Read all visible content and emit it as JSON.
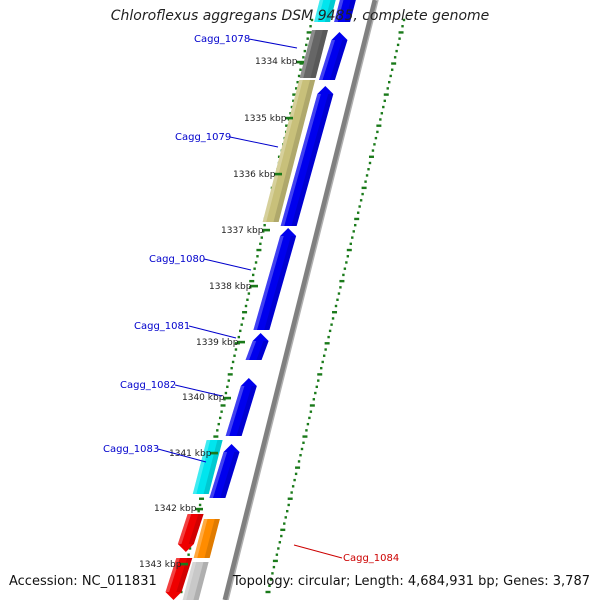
{
  "title": "Chloroflexus aggregans DSM 9485, complete genome",
  "footer": {
    "accession": "Accession: NC_011831",
    "summary": "Topology: circular; Length: 4,684,931 bp; Genes: 3,787"
  },
  "ticks": [
    {
      "label": "1334 kbp"
    },
    {
      "label": "1335 kbp"
    },
    {
      "label": "1336 kbp"
    },
    {
      "label": "1337 kbp"
    },
    {
      "label": "1338 kbp"
    },
    {
      "label": "1339 kbp"
    },
    {
      "label": "1340 kbp"
    },
    {
      "label": "1341 kbp"
    },
    {
      "label": "1342 kbp"
    },
    {
      "label": "1343 kbp"
    }
  ],
  "gene_labels": [
    {
      "name": "Cagg_1078",
      "color": "#0000cc"
    },
    {
      "name": "Cagg_1079",
      "color": "#0000cc"
    },
    {
      "name": "Cagg_1080",
      "color": "#0000cc"
    },
    {
      "name": "Cagg_1081",
      "color": "#0000cc"
    },
    {
      "name": "Cagg_1082",
      "color": "#0000cc"
    },
    {
      "name": "Cagg_1083",
      "color": "#0000cc"
    },
    {
      "name": "Cagg_1084",
      "color": "#cc0000"
    }
  ],
  "colors": {
    "blue": "#0000ee",
    "cyan": "#00e5ee",
    "khaki": "#c8c07a",
    "gray": "#666666",
    "red": "#ee0000",
    "orange": "#ff8c00",
    "silver": "#c8c8c8",
    "backbone": "#808080",
    "dots": "#1a7a1a"
  }
}
